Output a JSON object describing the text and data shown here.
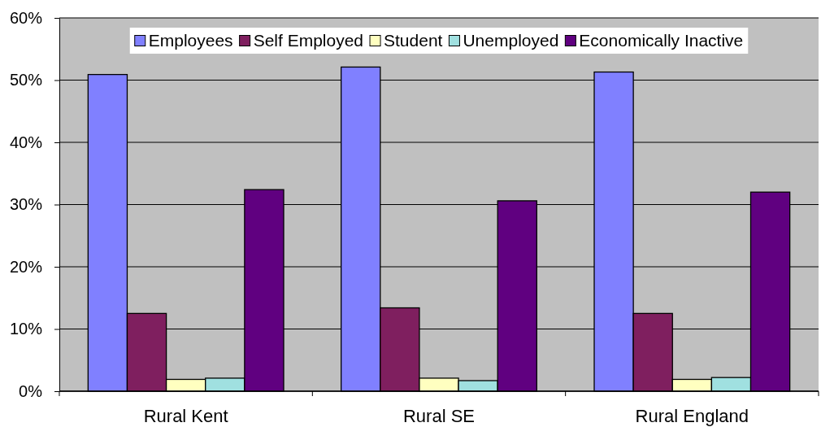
{
  "chart_data": {
    "type": "bar",
    "categories": [
      "Rural Kent",
      "Rural SE",
      "Rural England"
    ],
    "series": [
      {
        "name": "Employees",
        "color": "#8080ff",
        "values": [
          50.9,
          52.1,
          51.3
        ]
      },
      {
        "name": "Self Employed",
        "color": "#7f1f5f",
        "values": [
          12.5,
          13.4,
          12.5
        ]
      },
      {
        "name": "Student",
        "color": "#ffffc0",
        "values": [
          1.9,
          2.1,
          1.9
        ]
      },
      {
        "name": "Unemployed",
        "color": "#a0e0e0",
        "values": [
          2.1,
          1.7,
          2.2
        ]
      },
      {
        "name": "Economically Inactive",
        "color": "#600080",
        "values": [
          32.4,
          30.6,
          32.0
        ]
      }
    ],
    "ylim": [
      0,
      60
    ],
    "yticks": [
      {
        "value": 0,
        "label": "0%"
      },
      {
        "value": 10,
        "label": "10%"
      },
      {
        "value": 20,
        "label": "20%"
      },
      {
        "value": 30,
        "label": "30%"
      },
      {
        "value": 40,
        "label": "40%"
      },
      {
        "value": 50,
        "label": "50%"
      },
      {
        "value": 60,
        "label": "60%"
      }
    ],
    "grid": "y",
    "legend": "top"
  }
}
